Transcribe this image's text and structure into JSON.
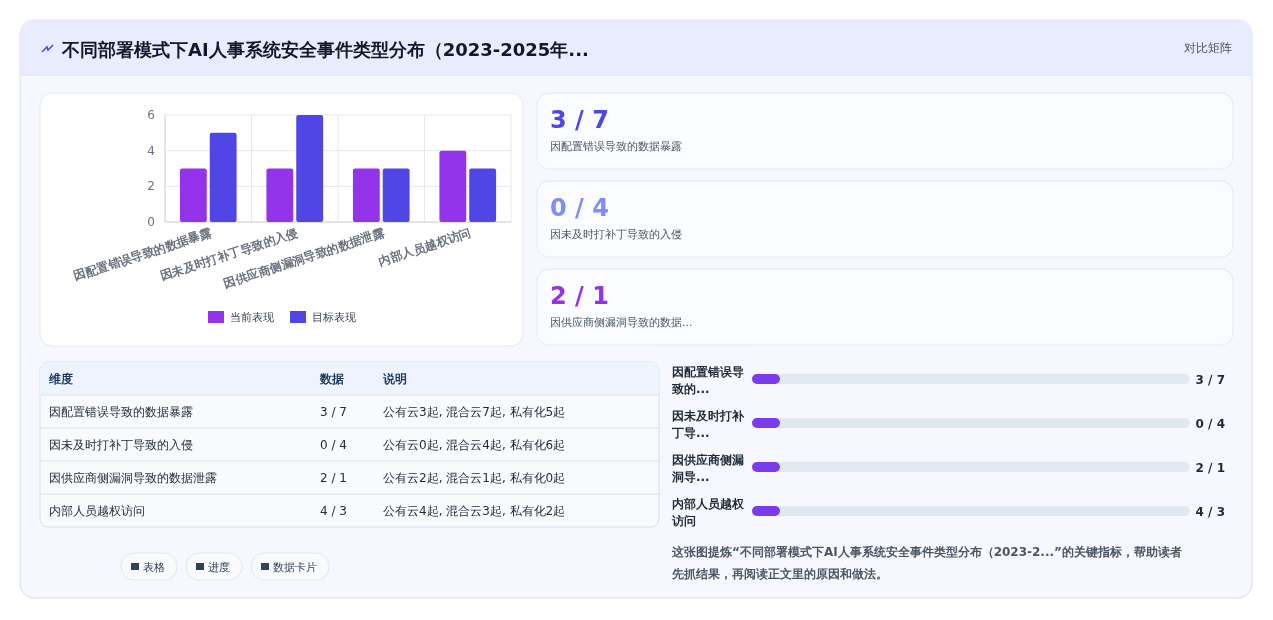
{
  "chart_data": [
    {
      "type": "other",
      "title": "不同部署模式下AI人事系统安全事件类型分布（2023-2025年...",
      "annotations": [
        "对比矩阵"
      ]
    },
    {
      "type": "bar",
      "categories": [
        "因配置错误导致的数据暴露",
        "因未及时打补丁导致的入侵",
        "因供应商侧漏洞导致的数据泄露",
        "内部人员越权访问"
      ],
      "series": [
        {
          "name": "当前表现",
          "color": "#9333ea",
          "values": [
            3,
            3,
            3,
            4
          ]
        },
        {
          "name": "目标表现",
          "color": "#4f46e5",
          "values": [
            5,
            6,
            3,
            3
          ]
        }
      ],
      "ylim": [
        0,
        6
      ],
      "yticks": [
        0,
        2,
        4,
        6
      ],
      "grid": true,
      "legend": "bottom"
    },
    {
      "type": "other",
      "annotations": [
        "3 / 7",
        "因配置错误导致的数据暴露",
        "0 / 4",
        "因未及时打补丁导致的入侵",
        "2 / 1",
        "因供应商侧漏洞导致的数据..."
      ],
      "colors": [
        "#4f46e5",
        "#818cf8",
        "#9333ea"
      ]
    },
    {
      "type": "other",
      "annotations": [
        "维度",
        "数据",
        "说明",
        "因配置错误导致的数据暴露",
        "3 / 7",
        "公有云3起, 混合云7起, 私有化5起",
        "因未及时打补丁导致的入侵",
        "0 / 4",
        "公有云0起, 混合云4起, 私有化6起",
        "因供应商侧漏洞导致的数据泄露",
        "2 / 1",
        "公有云2起, 混合云1起, 私有化0起",
        "内部人员越权访问",
        "4 / 3",
        "公有云4起, 混合云3起, 私有化2起"
      ]
    },
    {
      "type": "other",
      "annotations": [
        "因配置错误导致的...",
        "3 / 7",
        "因未及时打补丁导...",
        "0 / 4",
        "因供应商侧漏洞导...",
        "2 / 1",
        "内部人员越权访问",
        "4 / 3"
      ]
    },
    {
      "type": "other",
      "annotations": [
        "表格",
        "进度",
        "数据卡片",
        "这张图提炼“不同部署模式下AI人事系统安全事件类型分布（2023-2...”的关键指标，帮助读者先抓结果，再阅读正文里的原因和做法。"
      ]
    }
  ]
}
